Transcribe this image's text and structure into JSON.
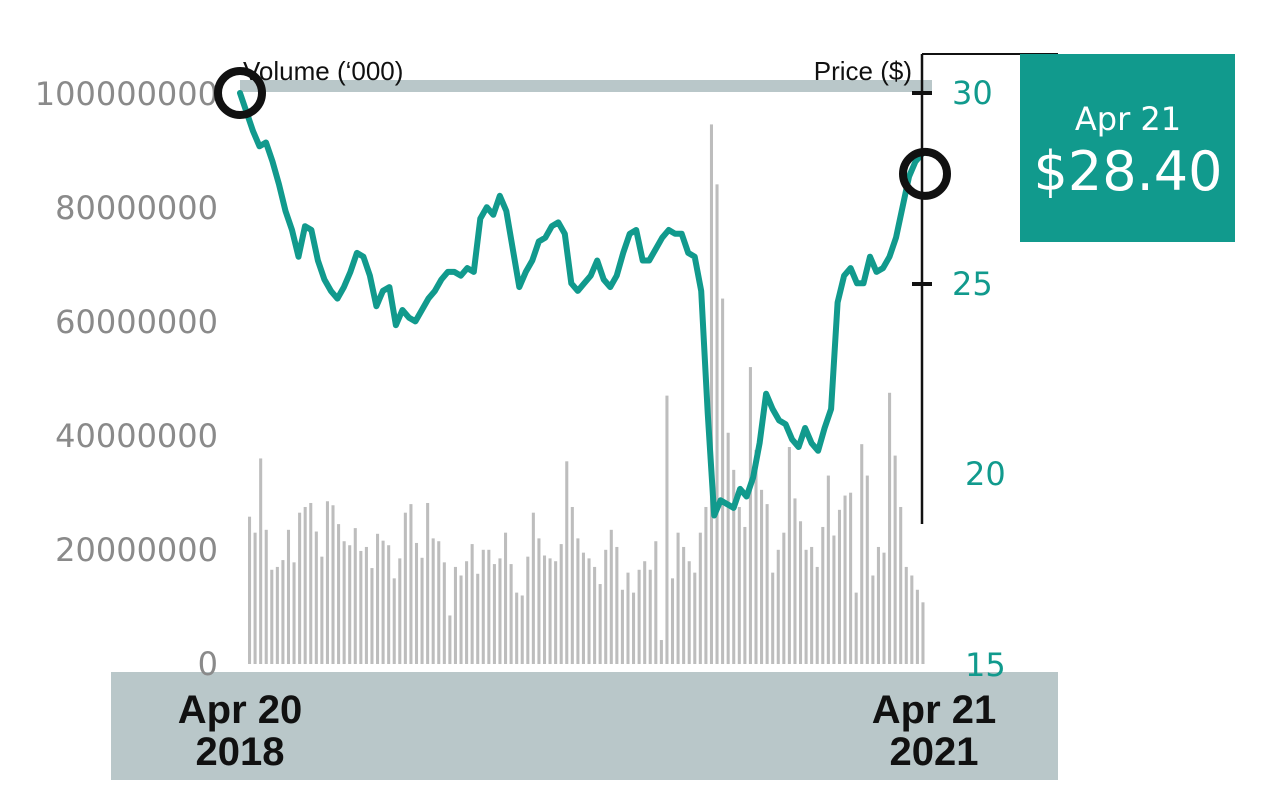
{
  "colors": {
    "price_line": "#119a8d",
    "volume_bar": "#bdbdbd",
    "axis_text_left": "#8a8a8a",
    "axis_text_right": "#119a8d",
    "band": "#b9c7c9",
    "callout_bg": "#119a8d",
    "marker": "#111111"
  },
  "callout": {
    "date": "Apr 21",
    "price": "$28.40"
  },
  "chart_data": {
    "type": "line+bar",
    "y_left_label": "Volume (‘000)",
    "y_right_label": "Price ($)",
    "y_left_ticks": [
      "100000000",
      "80000000",
      "60000000",
      "40000000",
      "20000000",
      "0"
    ],
    "y_left_lim": [
      0,
      100000000
    ],
    "y_right_ticks": [
      "30",
      "25",
      "20",
      "15"
    ],
    "y_right_lim": [
      15,
      30
    ],
    "x_start": {
      "line1": "Apr 20",
      "line2": "2018"
    },
    "x_end": {
      "line1": "Apr 21",
      "line2": "2021"
    },
    "series": [
      {
        "name": "Price ($)",
        "kind": "line",
        "values": [
          30.0,
          29.5,
          29.0,
          28.6,
          28.7,
          28.2,
          27.6,
          26.9,
          26.4,
          25.7,
          26.5,
          26.4,
          25.6,
          25.1,
          24.8,
          24.6,
          24.9,
          25.3,
          25.8,
          25.7,
          25.2,
          24.4,
          24.8,
          24.9,
          23.9,
          24.3,
          24.1,
          24.0,
          24.3,
          24.6,
          24.8,
          25.1,
          25.3,
          25.3,
          25.2,
          25.4,
          25.3,
          26.7,
          27.0,
          26.8,
          27.3,
          26.9,
          25.9,
          24.9,
          25.3,
          25.6,
          26.1,
          26.2,
          26.5,
          26.6,
          26.3,
          25.0,
          24.8,
          25.0,
          25.2,
          25.6,
          25.1,
          24.9,
          25.2,
          25.8,
          26.3,
          26.4,
          25.6,
          25.6,
          25.9,
          26.2,
          26.4,
          26.3,
          26.3,
          25.8,
          25.7,
          24.8,
          21.6,
          18.9,
          19.3,
          19.2,
          19.1,
          19.6,
          19.4,
          19.9,
          20.8,
          22.1,
          21.7,
          21.4,
          21.3,
          20.9,
          20.7,
          21.2,
          20.8,
          20.6,
          21.2,
          21.7,
          24.5,
          25.2,
          25.4,
          25.0,
          25.0,
          25.7,
          25.3,
          25.4,
          25.7,
          26.2,
          27.0,
          27.8,
          28.2,
          28.4
        ],
        "note": "approximate weekly-scale trace read from gridlines"
      },
      {
        "name": "Volume",
        "kind": "bar",
        "values": [
          25800000,
          23000000,
          36000000,
          23500000,
          16500000,
          17000000,
          18200000,
          23500000,
          17800000,
          26500000,
          27500000,
          28200000,
          23200000,
          18800000,
          28500000,
          27800000,
          24500000,
          21500000,
          20800000,
          23800000,
          19800000,
          20500000,
          16800000,
          22800000,
          21600000,
          20800000,
          15000000,
          18500000,
          26500000,
          28000000,
          21200000,
          18600000,
          28200000,
          22000000,
          21500000,
          17800000,
          8500000,
          17000000,
          15500000,
          18000000,
          21000000,
          15800000,
          20000000,
          20000000,
          17500000,
          18500000,
          23000000,
          17500000,
          12500000,
          12000000,
          18800000,
          26500000,
          22000000,
          19000000,
          18500000,
          18000000,
          21000000,
          35500000,
          27500000,
          22000000,
          19500000,
          18500000,
          17000000,
          14000000,
          20000000,
          23500000,
          20500000,
          13000000,
          16000000,
          12500000,
          16500000,
          18000000,
          16500000,
          21500000,
          4200000,
          47000000,
          15000000,
          23000000,
          20500000,
          18000000,
          16000000,
          23000000,
          27500000,
          94500000,
          84000000,
          64000000,
          40500000,
          34000000,
          27500000,
          24000000,
          52000000,
          37500000,
          30500000,
          28000000,
          16000000,
          20000000,
          23000000,
          38000000,
          29000000,
          25000000,
          20000000,
          20500000,
          17000000,
          24000000,
          33000000,
          22500000,
          27000000,
          29500000,
          30000000,
          12500000,
          38500000,
          33000000,
          15500000,
          20500000,
          19500000,
          47500000,
          36500000,
          27500000,
          17000000,
          15500000,
          13000000,
          10800000
        ]
      }
    ],
    "markers": [
      {
        "label": "start",
        "value": 30.0
      },
      {
        "label": "end",
        "value": 28.4
      }
    ]
  }
}
